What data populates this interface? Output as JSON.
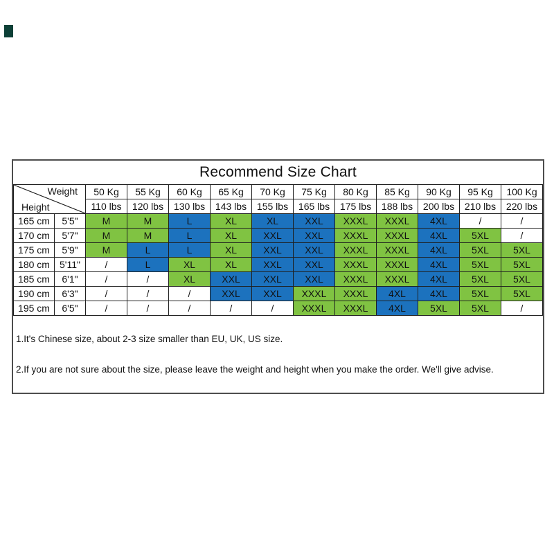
{
  "title": "Recommend Size Chart",
  "colors": {
    "green_cell": "#80C342",
    "blue_cell": "#1C72BE",
    "corner_mark": "#0d4037"
  },
  "table": {
    "corner": {
      "weight_label": "Weight",
      "height_label": "Height"
    },
    "weight_headers": [
      "50 Kg",
      "55 Kg",
      "60 Kg",
      "65 Kg",
      "70 Kg",
      "75 Kg",
      "80 Kg",
      "85 Kg",
      "90 Kg",
      "95 Kg",
      "100 Kg"
    ],
    "lbs_headers": [
      "110 lbs",
      "120 lbs",
      "130 lbs",
      "143 lbs",
      "155 lbs",
      "165 lbs",
      "175 lbs",
      "188 lbs",
      "200 lbs",
      "210 lbs",
      "220 lbs"
    ],
    "rows": [
      {
        "cm": "165 cm",
        "ft": "5'5\"",
        "cells": [
          {
            "t": "M",
            "c": "g"
          },
          {
            "t": "M",
            "c": "g"
          },
          {
            "t": "L",
            "c": "b"
          },
          {
            "t": "XL",
            "c": "g"
          },
          {
            "t": "XL",
            "c": "b"
          },
          {
            "t": "XXL",
            "c": "b"
          },
          {
            "t": "XXXL",
            "c": "g"
          },
          {
            "t": "XXXL",
            "c": "g"
          },
          {
            "t": "4XL",
            "c": "b"
          },
          {
            "t": "/",
            "c": "w"
          },
          {
            "t": "/",
            "c": "w"
          }
        ]
      },
      {
        "cm": "170 cm",
        "ft": "5'7\"",
        "cells": [
          {
            "t": "M",
            "c": "g"
          },
          {
            "t": "M",
            "c": "g"
          },
          {
            "t": "L",
            "c": "b"
          },
          {
            "t": "XL",
            "c": "g"
          },
          {
            "t": "XXL",
            "c": "b"
          },
          {
            "t": "XXL",
            "c": "b"
          },
          {
            "t": "XXXL",
            "c": "g"
          },
          {
            "t": "XXXL",
            "c": "g"
          },
          {
            "t": "4XL",
            "c": "b"
          },
          {
            "t": "5XL",
            "c": "g"
          },
          {
            "t": "/",
            "c": "w"
          }
        ]
      },
      {
        "cm": "175 cm",
        "ft": "5'9\"",
        "cells": [
          {
            "t": "M",
            "c": "g"
          },
          {
            "t": "L",
            "c": "b"
          },
          {
            "t": "L",
            "c": "b"
          },
          {
            "t": "XL",
            "c": "g"
          },
          {
            "t": "XXL",
            "c": "b"
          },
          {
            "t": "XXL",
            "c": "b"
          },
          {
            "t": "XXXL",
            "c": "g"
          },
          {
            "t": "XXXL",
            "c": "g"
          },
          {
            "t": "4XL",
            "c": "b"
          },
          {
            "t": "5XL",
            "c": "g"
          },
          {
            "t": "5XL",
            "c": "g"
          }
        ]
      },
      {
        "cm": "180 cm",
        "ft": "5'11\"",
        "cells": [
          {
            "t": "/",
            "c": "w"
          },
          {
            "t": "L",
            "c": "b"
          },
          {
            "t": "XL",
            "c": "g"
          },
          {
            "t": "XL",
            "c": "g"
          },
          {
            "t": "XXL",
            "c": "b"
          },
          {
            "t": "XXL",
            "c": "b"
          },
          {
            "t": "XXXL",
            "c": "g"
          },
          {
            "t": "XXXL",
            "c": "g"
          },
          {
            "t": "4XL",
            "c": "b"
          },
          {
            "t": "5XL",
            "c": "g"
          },
          {
            "t": "5XL",
            "c": "g"
          }
        ]
      },
      {
        "cm": "185 cm",
        "ft": "6'1\"",
        "cells": [
          {
            "t": "/",
            "c": "w"
          },
          {
            "t": "/",
            "c": "w"
          },
          {
            "t": "XL",
            "c": "g"
          },
          {
            "t": "XXL",
            "c": "b"
          },
          {
            "t": "XXL",
            "c": "b"
          },
          {
            "t": "XXL",
            "c": "b"
          },
          {
            "t": "XXXL",
            "c": "g"
          },
          {
            "t": "XXXL",
            "c": "g"
          },
          {
            "t": "4XL",
            "c": "b"
          },
          {
            "t": "5XL",
            "c": "g"
          },
          {
            "t": "5XL",
            "c": "g"
          }
        ]
      },
      {
        "cm": "190 cm",
        "ft": "6'3\"",
        "cells": [
          {
            "t": "/",
            "c": "w"
          },
          {
            "t": "/",
            "c": "w"
          },
          {
            "t": "/",
            "c": "w"
          },
          {
            "t": "XXL",
            "c": "b"
          },
          {
            "t": "XXL",
            "c": "b"
          },
          {
            "t": "XXXL",
            "c": "g"
          },
          {
            "t": "XXXL",
            "c": "g"
          },
          {
            "t": "4XL",
            "c": "b"
          },
          {
            "t": "4XL",
            "c": "b"
          },
          {
            "t": "5XL",
            "c": "g"
          },
          {
            "t": "5XL",
            "c": "g"
          }
        ]
      },
      {
        "cm": "195 cm",
        "ft": "6'5\"",
        "cells": [
          {
            "t": "/",
            "c": "w"
          },
          {
            "t": "/",
            "c": "w"
          },
          {
            "t": "/",
            "c": "w"
          },
          {
            "t": "/",
            "c": "w"
          },
          {
            "t": "/",
            "c": "w"
          },
          {
            "t": "XXXL",
            "c": "g"
          },
          {
            "t": "XXXL",
            "c": "g"
          },
          {
            "t": "4XL",
            "c": "b"
          },
          {
            "t": "5XL",
            "c": "g"
          },
          {
            "t": "5XL",
            "c": "g"
          },
          {
            "t": "/",
            "c": "w"
          }
        ]
      }
    ]
  },
  "notes": [
    "1.It's Chinese size, about 2-3 size smaller than EU, UK, US size.",
    "2.If you are not sure about the size, please leave the weight and height when you make the order. We'll give advise."
  ]
}
